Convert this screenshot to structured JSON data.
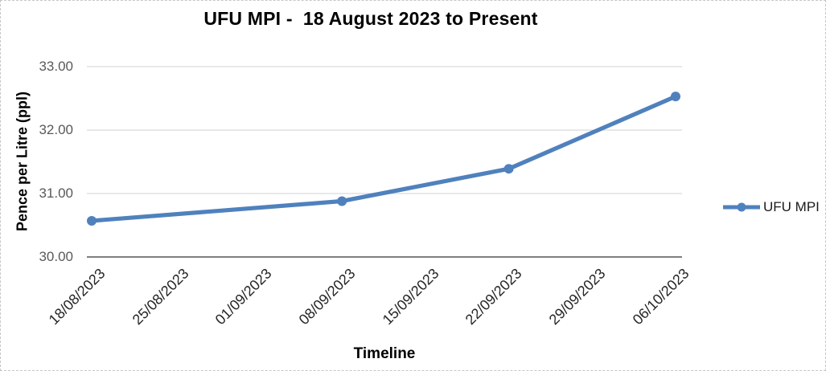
{
  "chart": {
    "title": "UFU MPI -  18 August 2023 to Present",
    "legend_items": [
      "UFU MPI"
    ]
  },
  "chart_data": {
    "type": "line",
    "title": "UFU MPI -  18 August 2023 to Present",
    "xlabel": "Timeline",
    "ylabel": "Pence per Litre (ppl)",
    "categories": [
      "18/08/2023",
      "25/08/2023",
      "01/09/2023",
      "08/09/2023",
      "15/09/2023",
      "22/09/2023",
      "29/09/2023",
      "06/10/2023"
    ],
    "series": [
      {
        "name": "UFU MPI",
        "values": [
          30.57,
          null,
          null,
          30.88,
          null,
          31.39,
          null,
          32.53
        ]
      }
    ],
    "ylim": [
      30,
      33
    ],
    "yticks": [
      30,
      31,
      32,
      33
    ],
    "ytick_labels": [
      "30.00",
      "31.00",
      "32.00",
      "33.00"
    ],
    "grid": true,
    "marker": "circle",
    "legend_position": "right",
    "colors": {
      "series": "#4F81BD",
      "gridline": "#D9D9D9",
      "axis_line": "#7F7F7F",
      "ytick_text": "#595959",
      "xtick_text": "#262626",
      "title_text": "#000000"
    }
  }
}
